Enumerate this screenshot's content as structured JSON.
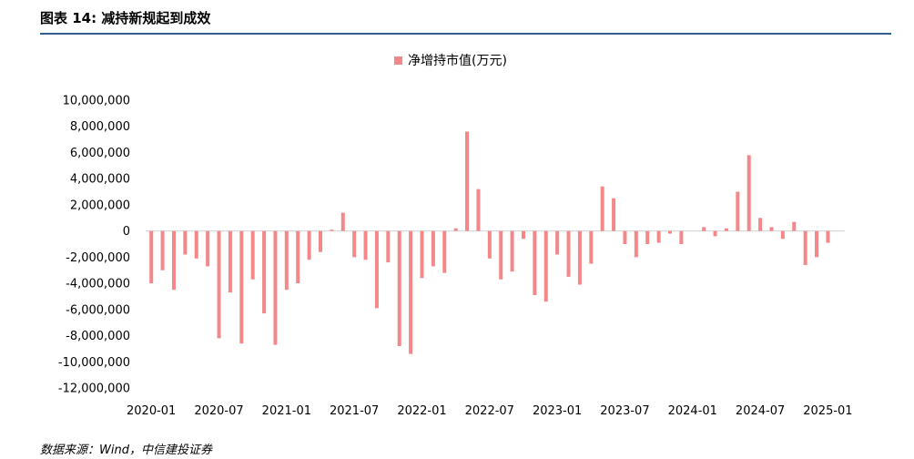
{
  "header": {
    "title": "图表 14: 减持新规起到成效"
  },
  "footer": {
    "source": "数据来源：Wind，中信建投证券"
  },
  "colors": {
    "bar": "#f4878a",
    "axis": "#d0d0d0",
    "rule": "#2f5f8a"
  },
  "chart_data": {
    "type": "bar",
    "title": "",
    "xlabel": "",
    "ylabel": "",
    "legend": {
      "position": "top-center",
      "entries": [
        "净增持市值(万元)"
      ]
    },
    "grid": false,
    "ylim": [
      -12000000,
      10000000
    ],
    "yticks": [
      10000000,
      8000000,
      6000000,
      4000000,
      2000000,
      0,
      -2000000,
      -4000000,
      -6000000,
      -8000000,
      -10000000,
      -12000000
    ],
    "ytick_labels": [
      "10,000,000",
      "8,000,000",
      "6,000,000",
      "4,000,000",
      "2,000,000",
      "0",
      "-2,000,000",
      "-4,000,000",
      "-6,000,000",
      "-8,000,000",
      "-10,000,000",
      "-12,000,000"
    ],
    "xtick_labels": [
      "2020-01",
      "2020-07",
      "2021-01",
      "2021-07",
      "2022-01",
      "2022-07",
      "2023-01",
      "2023-07",
      "2024-01",
      "2024-07",
      "2025-01"
    ],
    "xtick_every": 6,
    "categories": [
      "2020-01",
      "2020-02",
      "2020-03",
      "2020-04",
      "2020-05",
      "2020-06",
      "2020-07",
      "2020-08",
      "2020-09",
      "2020-10",
      "2020-11",
      "2020-12",
      "2021-01",
      "2021-02",
      "2021-03",
      "2021-04",
      "2021-05",
      "2021-06",
      "2021-07",
      "2021-08",
      "2021-09",
      "2021-10",
      "2021-11",
      "2021-12",
      "2022-01",
      "2022-02",
      "2022-03",
      "2022-04",
      "2022-05",
      "2022-06",
      "2022-07",
      "2022-08",
      "2022-09",
      "2022-10",
      "2022-11",
      "2022-12",
      "2023-01",
      "2023-02",
      "2023-03",
      "2023-04",
      "2023-05",
      "2023-06",
      "2023-07",
      "2023-08",
      "2023-09",
      "2023-10",
      "2023-11",
      "2023-12",
      "2024-01",
      "2024-02",
      "2024-03",
      "2024-04",
      "2024-05",
      "2024-06",
      "2024-07",
      "2024-08",
      "2024-09",
      "2024-10",
      "2024-11",
      "2024-12",
      "2025-01",
      "2025-02"
    ],
    "series": [
      {
        "name": "净增持市值(万元)",
        "values": [
          -4000000,
          -3000000,
          -4500000,
          -1800000,
          -2100000,
          -2700000,
          -8200000,
          -4700000,
          -8600000,
          -3700000,
          -6300000,
          -8700000,
          -4500000,
          -4000000,
          -2200000,
          -1600000,
          100000,
          1400000,
          -2000000,
          -2200000,
          -5900000,
          -2400000,
          -8800000,
          -9400000,
          -3600000,
          -2700000,
          -3200000,
          200000,
          7600000,
          3200000,
          -2100000,
          -3700000,
          -3100000,
          -600000,
          -4900000,
          -5400000,
          -1800000,
          -3500000,
          -4100000,
          -2500000,
          3400000,
          2500000,
          -1000000,
          -2000000,
          -1000000,
          -900000,
          -200000,
          -1000000,
          0,
          300000,
          -400000,
          200000,
          3000000,
          5800000,
          1000000,
          300000,
          -600000,
          700000,
          -2600000,
          -2000000,
          -900000,
          0
        ]
      }
    ]
  }
}
